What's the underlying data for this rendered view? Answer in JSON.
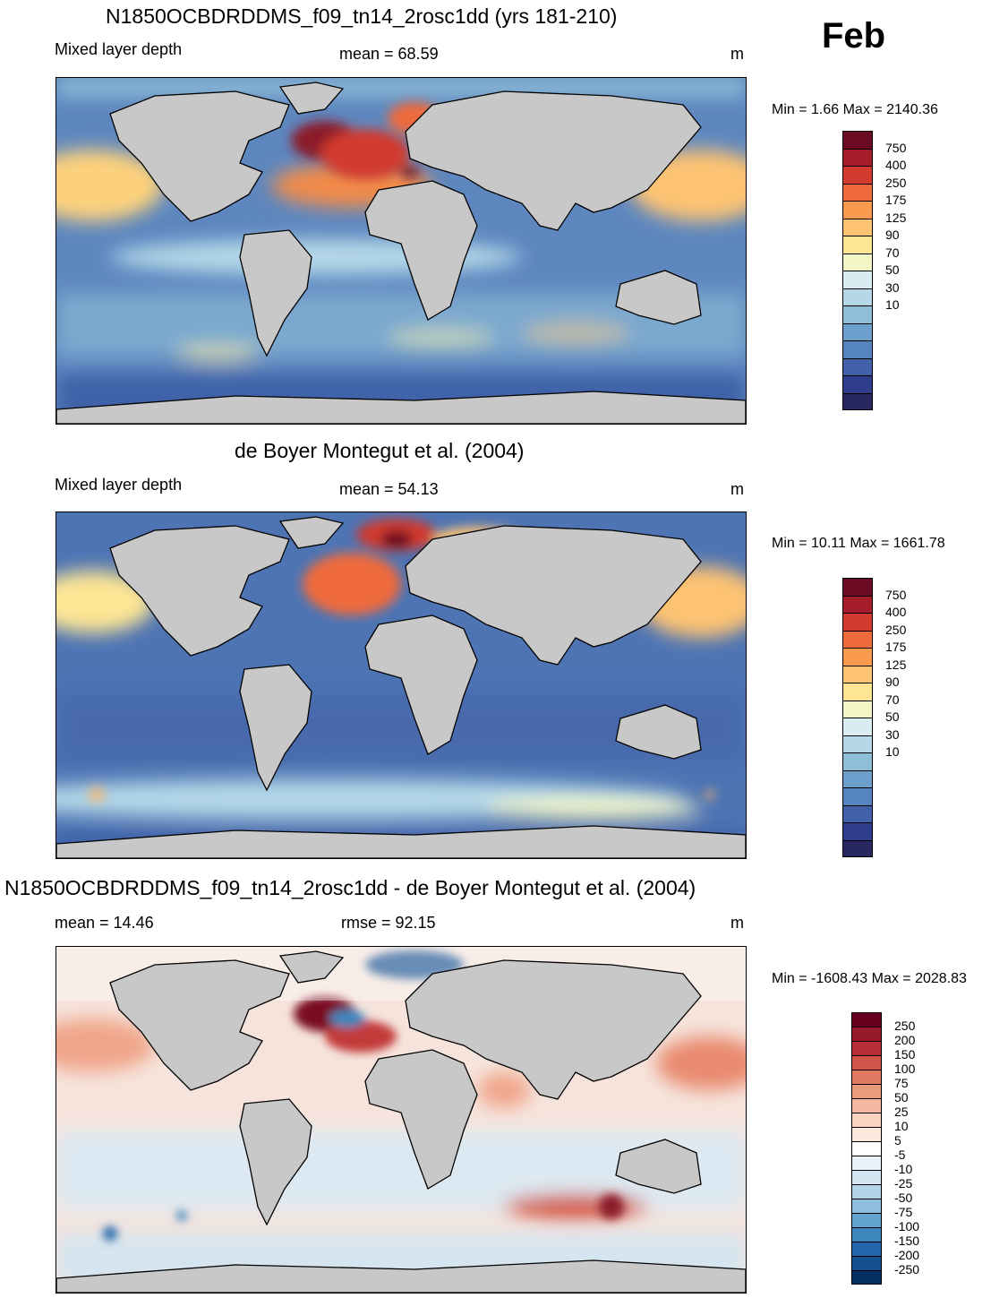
{
  "month": "Feb",
  "panels": [
    {
      "title": "N1850OCBDRDDMS_f09_tn14_2rosc1dd (yrs 181-210)",
      "left_label": "Mixed layer depth",
      "center_label": "mean =  68.59",
      "units": "m",
      "minmax": "Min =   1.66 Max = 2140.36",
      "ocean_color": "#5a84bd"
    },
    {
      "title": "de Boyer Montegut et al. (2004)",
      "left_label": "Mixed layer depth",
      "center_label": "mean =  54.13",
      "units": "m",
      "minmax": "Min =  10.11 Max = 1661.78",
      "ocean_color": "#4a6fb0"
    },
    {
      "title": "N1850OCBDRDDMS_f09_tn14_2rosc1dd - de Boyer Montegut et al. (2004)",
      "left_label": "mean =  14.46",
      "center_label": "rmse =  92.15",
      "units": "m",
      "minmax": "Min = -1608.43 Max = 2028.83",
      "ocean_color": "#f4e6e1"
    }
  ],
  "colorbar_mld": {
    "labels": [
      "750",
      "400",
      "250",
      "175",
      "125",
      "90",
      "70",
      "50",
      "30",
      "10"
    ],
    "colors": [
      "#6b0a22",
      "#a51c2b",
      "#d23b2f",
      "#ee6a3c",
      "#f99a4f",
      "#fdc372",
      "#fde594",
      "#f3f6c6",
      "#d8ecf1",
      "#b4d8e8",
      "#8fbed9",
      "#6c9fcc",
      "#5684be",
      "#4162a9",
      "#2f3d8a",
      "#28275f"
    ]
  },
  "colorbar_diff": {
    "labels": [
      "250",
      "200",
      "150",
      "100",
      "75",
      "50",
      "25",
      "10",
      "5",
      "-5",
      "-10",
      "-25",
      "-50",
      "-75",
      "-100",
      "-150",
      "-200",
      "-250"
    ],
    "colors": [
      "#67001f",
      "#961a2b",
      "#b72f36",
      "#cf5548",
      "#e07a60",
      "#ec9a7e",
      "#f5b8a0",
      "#fad3c2",
      "#fde8dd",
      "#ffffff",
      "#e9f1f7",
      "#d2e5f0",
      "#b3d4e8",
      "#8fbfdc",
      "#62a4cd",
      "#3c86bd",
      "#2166ac",
      "#154f8f",
      "#053061"
    ]
  }
}
